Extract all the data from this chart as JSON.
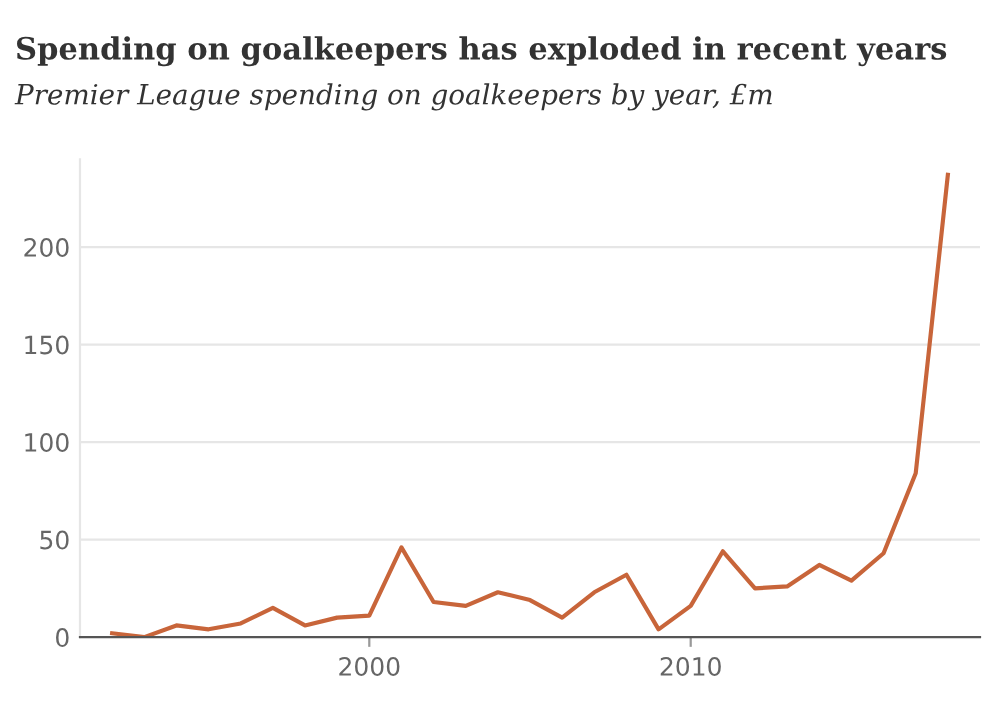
{
  "chart_data": {
    "type": "line",
    "title": "Spending on goalkeepers has exploded in recent years",
    "subtitle": "Premier League spending on goalkeepers by year, £m",
    "x": [
      1992,
      1993,
      1994,
      1995,
      1996,
      1997,
      1998,
      1999,
      2000,
      2001,
      2002,
      2003,
      2004,
      2005,
      2006,
      2007,
      2008,
      2009,
      2010,
      2011,
      2012,
      2013,
      2014,
      2015,
      2016,
      2017,
      2018
    ],
    "series": [
      {
        "color": "#c8653a",
        "values": [
          2,
          0,
          6,
          4,
          7,
          15,
          6,
          10,
          11,
          46,
          18,
          16,
          23,
          19,
          10,
          23,
          32,
          4,
          16,
          44,
          25,
          26,
          37,
          29,
          43,
          84,
          237
        ]
      }
    ],
    "xlim": [
      1991,
      2019
    ],
    "ylim": [
      0,
      245
    ],
    "xticks": [
      2000,
      2010
    ],
    "yticks": [
      0,
      50,
      100,
      150,
      200
    ],
    "grid": "y",
    "marker": "none",
    "line_style": "solid"
  }
}
